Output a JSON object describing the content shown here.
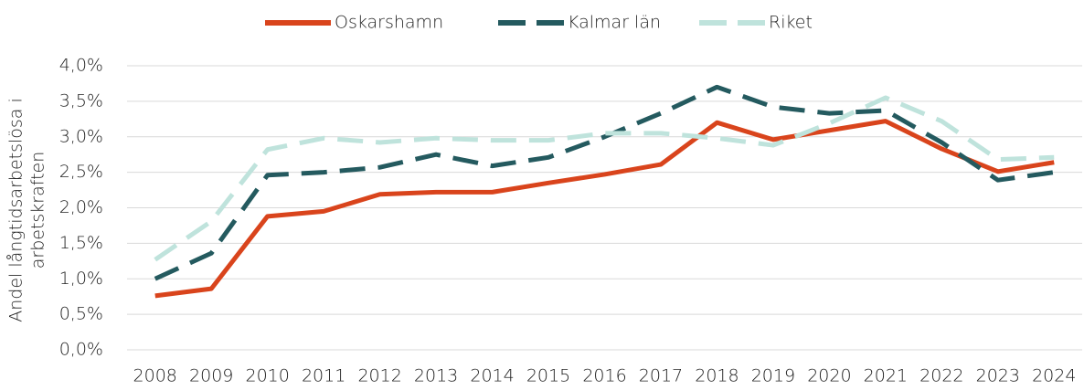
{
  "chart_data": {
    "type": "line",
    "ylabel": [
      "Andel långtidsarbetslösa i",
      "arbetskraften"
    ],
    "categories": [
      "2008",
      "2009",
      "2010",
      "2011",
      "2012",
      "2013",
      "2014",
      "2015",
      "2016",
      "2017",
      "2018",
      "2019",
      "2020",
      "2021",
      "2022",
      "2023",
      "2024"
    ],
    "series": [
      {
        "name": "Oskarshamn",
        "color": "#d9441c",
        "line_style": "solid",
        "values": [
          0.76,
          0.86,
          1.88,
          1.95,
          2.19,
          2.22,
          2.22,
          2.35,
          2.47,
          2.61,
          3.2,
          2.96,
          3.09,
          3.22,
          2.83,
          2.51,
          2.64
        ]
      },
      {
        "name": "Kalmar län",
        "color": "#245a5f",
        "line_style": "dashed",
        "values": [
          1.0,
          1.36,
          2.46,
          2.5,
          2.57,
          2.75,
          2.59,
          2.71,
          3.0,
          3.33,
          3.7,
          3.42,
          3.33,
          3.37,
          2.92,
          2.39,
          2.5
        ]
      },
      {
        "name": "Riket",
        "color": "#bfe3dc",
        "line_style": "dashed",
        "values": [
          1.27,
          1.81,
          2.82,
          2.98,
          2.92,
          2.98,
          2.95,
          2.95,
          3.05,
          3.05,
          2.98,
          2.88,
          3.19,
          3.55,
          3.22,
          2.68,
          2.71
        ]
      }
    ],
    "ylim": [
      0,
      4
    ],
    "yticks": [
      {
        "value": 0,
        "label": "0,0%"
      },
      {
        "value": 0.5,
        "label": "0,5%"
      },
      {
        "value": 1,
        "label": "1,0%"
      },
      {
        "value": 1.5,
        "label": "1,5%"
      },
      {
        "value": 2,
        "label": "2,0%"
      },
      {
        "value": 2.5,
        "label": "2,5%"
      },
      {
        "value": 3,
        "label": "3,0%"
      },
      {
        "value": 3.5,
        "label": "3,5%"
      },
      {
        "value": 4,
        "label": "4,0%"
      }
    ],
    "grid": true,
    "legend": "top"
  }
}
